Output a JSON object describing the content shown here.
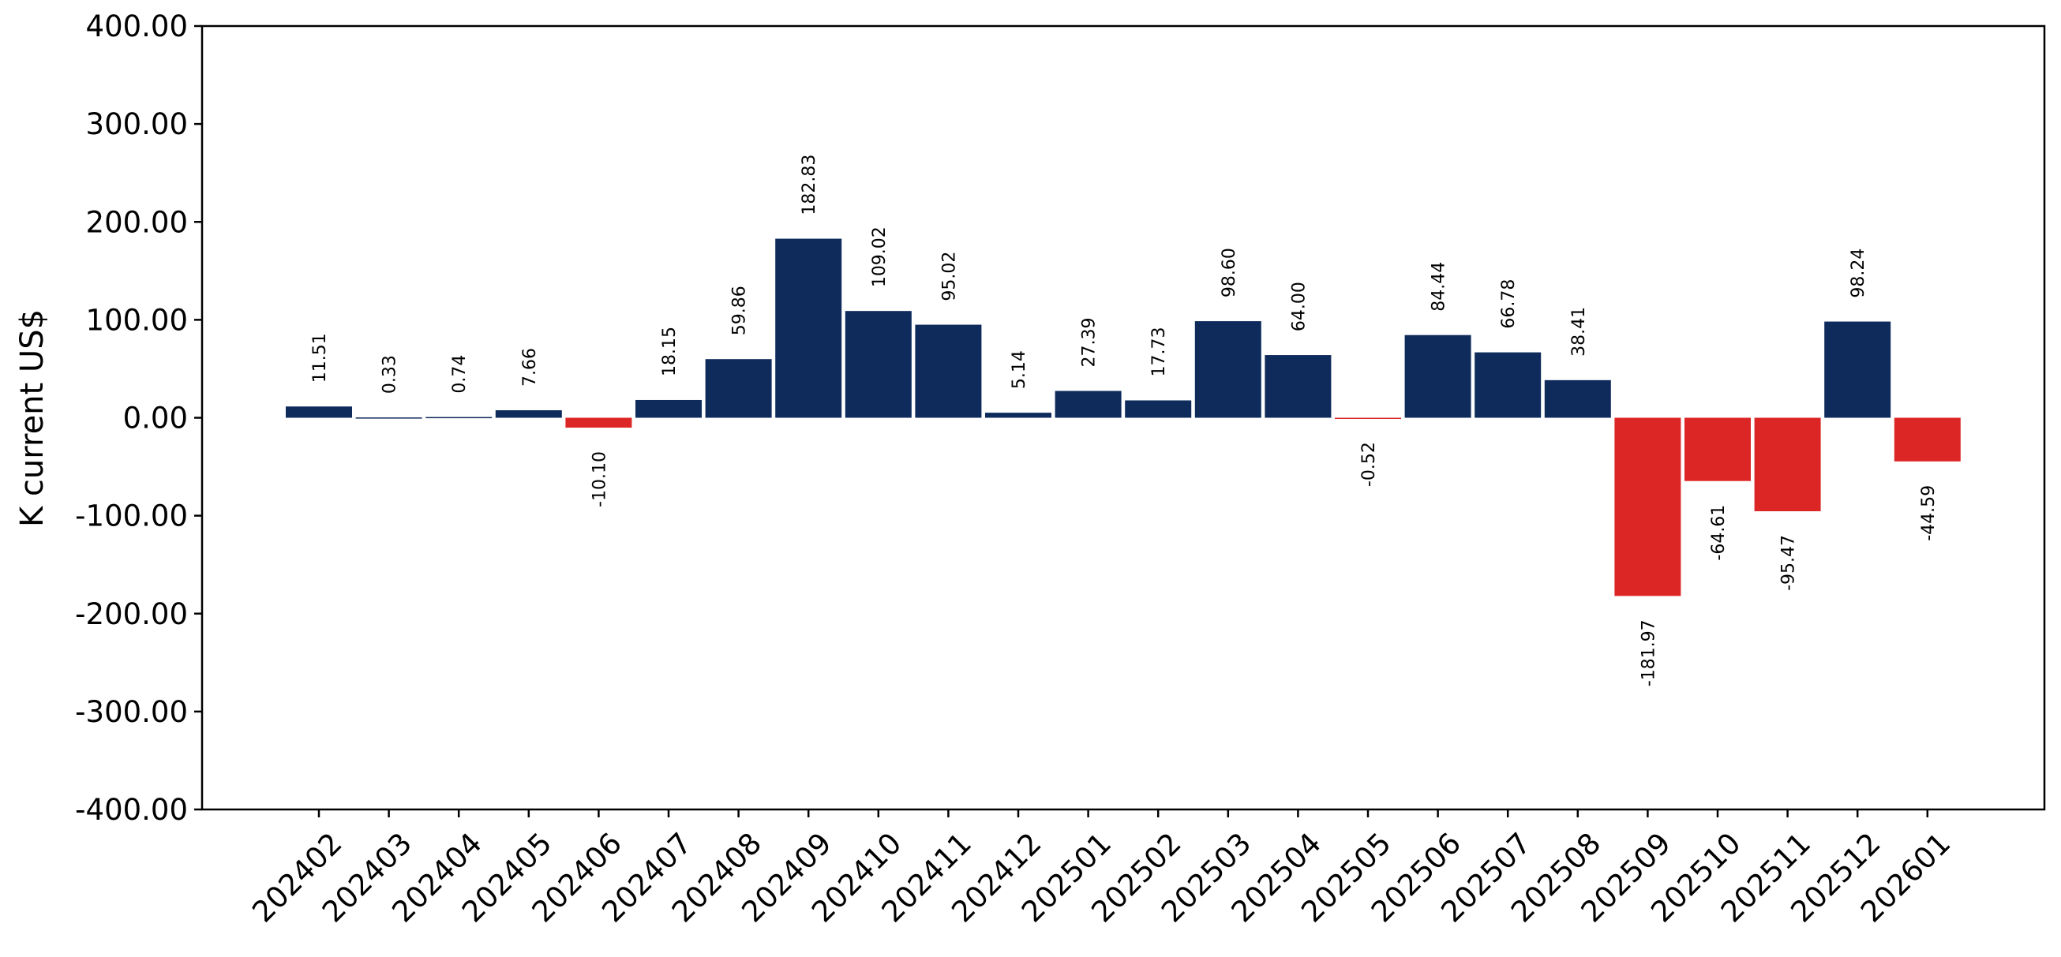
{
  "chart_data": {
    "type": "bar",
    "ylabel": "K current US$",
    "xlabel": "",
    "title": "",
    "ylim": [
      -400,
      400
    ],
    "yticks": [
      400,
      300,
      200,
      100,
      0,
      -100,
      -200,
      -300,
      -400
    ],
    "ytick_labels": [
      "400.00",
      "300.00",
      "200.00",
      "100.00",
      "0.00",
      "-100.00",
      "-200.00",
      "-300.00",
      "-400.00"
    ],
    "categories": [
      "202402",
      "202403",
      "202404",
      "202405",
      "202406",
      "202407",
      "202408",
      "202409",
      "202410",
      "202411",
      "202412",
      "202501",
      "202502",
      "202503",
      "202504",
      "202505",
      "202506",
      "202507",
      "202508",
      "202509",
      "202510",
      "202511",
      "202512",
      "202601"
    ],
    "values": [
      11.51,
      0.33,
      0.74,
      7.66,
      -10.1,
      18.15,
      59.86,
      182.83,
      109.02,
      95.02,
      5.14,
      27.39,
      17.73,
      98.6,
      64.0,
      -0.52,
      84.44,
      66.78,
      38.41,
      -181.97,
      -64.61,
      -95.47,
      98.24,
      -44.59
    ],
    "value_labels": [
      "11.51",
      "0.33",
      "0.74",
      "7.66",
      "-10.10",
      "18.15",
      "59.86",
      "182.83",
      "109.02",
      "95.02",
      "5.14",
      "27.39",
      "17.73",
      "98.60",
      "64.00",
      "-0.52",
      "84.44",
      "66.78",
      "38.41",
      "-181.97",
      "-64.61",
      "-95.47",
      "98.24",
      "-44.59"
    ],
    "colors": {
      "positive": "#0e2b5c",
      "negative": "#dc2626"
    },
    "grid": false,
    "legend": "none"
  }
}
